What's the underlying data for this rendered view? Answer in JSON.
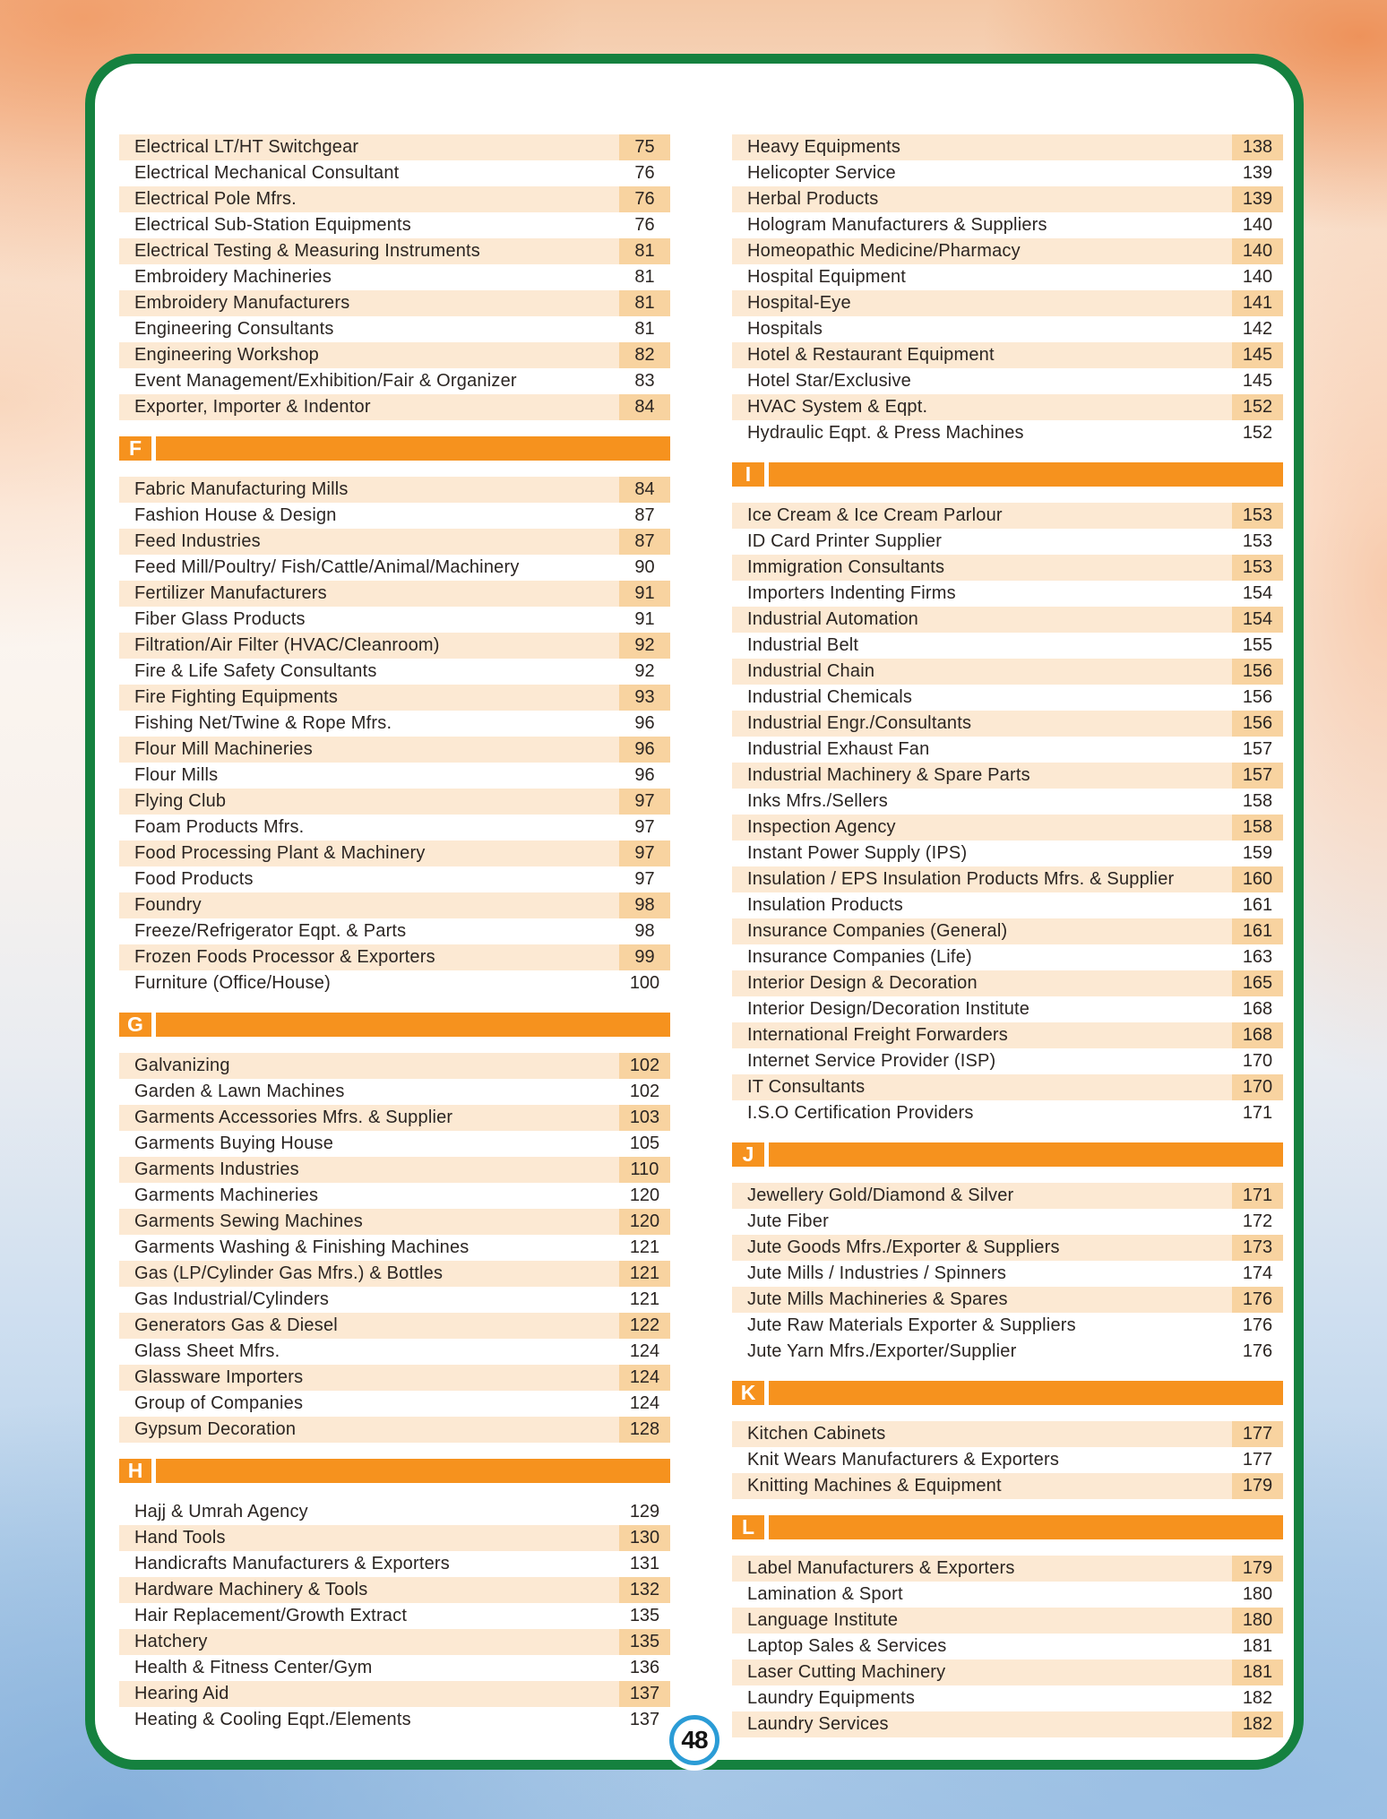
{
  "page": {
    "page_number": "48"
  },
  "colors": {
    "section_header_orange": "#F6921E",
    "row_highlight": "#FCE9D3",
    "page_number_cell": "#F8D3A0",
    "frame_green": "#15813F",
    "badge_ring_blue": "#2B9CD6",
    "text": "#2B2522"
  },
  "columns": [
    {
      "sections": [
        {
          "letter": null,
          "rows": [
            {
              "label": "Electrical LT/HT Switchgear",
              "page": "75",
              "hl": true
            },
            {
              "label": "Electrical Mechanical Consultant",
              "page": "76",
              "hl": false
            },
            {
              "label": "Electrical Pole Mfrs.",
              "page": "76",
              "hl": true
            },
            {
              "label": "Electrical Sub-Station Equipments",
              "page": "76",
              "hl": false
            },
            {
              "label": "Electrical Testing & Measuring Instruments",
              "page": "81",
              "hl": true
            },
            {
              "label": "Embroidery Machineries",
              "page": "81",
              "hl": false
            },
            {
              "label": "Embroidery Manufacturers",
              "page": "81",
              "hl": true
            },
            {
              "label": "Engineering Consultants",
              "page": "81",
              "hl": false
            },
            {
              "label": "Engineering Workshop",
              "page": "82",
              "hl": true
            },
            {
              "label": "Event Management/Exhibition/Fair & Organizer",
              "page": "83",
              "hl": false
            },
            {
              "label": "Exporter, Importer & Indentor",
              "page": "84",
              "hl": true
            }
          ]
        },
        {
          "letter": "F",
          "rows": [
            {
              "label": "Fabric Manufacturing Mills",
              "page": "84",
              "hl": true
            },
            {
              "label": "Fashion House & Design",
              "page": "87",
              "hl": false
            },
            {
              "label": "Feed Industries",
              "page": "87",
              "hl": true
            },
            {
              "label": "Feed Mill/Poultry/ Fish/Cattle/Animal/Machinery",
              "page": "90",
              "hl": false
            },
            {
              "label": "Fertilizer Manufacturers",
              "page": "91",
              "hl": true
            },
            {
              "label": "Fiber Glass Products",
              "page": "91",
              "hl": false
            },
            {
              "label": "Filtration/Air Filter (HVAC/Cleanroom)",
              "page": "92",
              "hl": true
            },
            {
              "label": "Fire & Life Safety Consultants",
              "page": "92",
              "hl": false
            },
            {
              "label": "Fire Fighting Equipments",
              "page": "93",
              "hl": true
            },
            {
              "label": "Fishing Net/Twine & Rope Mfrs.",
              "page": "96",
              "hl": false
            },
            {
              "label": "Flour Mill Machineries",
              "page": "96",
              "hl": true
            },
            {
              "label": "Flour Mills",
              "page": "96",
              "hl": false
            },
            {
              "label": "Flying Club",
              "page": "97",
              "hl": true
            },
            {
              "label": "Foam Products Mfrs.",
              "page": "97",
              "hl": false
            },
            {
              "label": "Food Processing Plant & Machinery",
              "page": "97",
              "hl": true
            },
            {
              "label": "Food Products",
              "page": "97",
              "hl": false
            },
            {
              "label": "Foundry",
              "page": "98",
              "hl": true
            },
            {
              "label": "Freeze/Refrigerator Eqpt. & Parts",
              "page": "98",
              "hl": false
            },
            {
              "label": "Frozen Foods Processor & Exporters",
              "page": "99",
              "hl": true
            },
            {
              "label": "Furniture (Office/House)",
              "page": "100",
              "hl": false
            }
          ]
        },
        {
          "letter": "G",
          "rows": [
            {
              "label": "Galvanizing",
              "page": "102",
              "hl": true
            },
            {
              "label": "Garden & Lawn Machines",
              "page": "102",
              "hl": false
            },
            {
              "label": "Garments Accessories Mfrs. & Supplier",
              "page": "103",
              "hl": true
            },
            {
              "label": "Garments Buying House",
              "page": "105",
              "hl": false
            },
            {
              "label": "Garments Industries",
              "page": "110",
              "hl": true
            },
            {
              "label": "Garments Machineries",
              "page": "120",
              "hl": false
            },
            {
              "label": "Garments Sewing Machines",
              "page": "120",
              "hl": true
            },
            {
              "label": "Garments Washing & Finishing Machines",
              "page": "121",
              "hl": false
            },
            {
              "label": "Gas (LP/Cylinder Gas Mfrs.) & Bottles",
              "page": "121",
              "hl": true
            },
            {
              "label": "Gas Industrial/Cylinders",
              "page": "121",
              "hl": false
            },
            {
              "label": "Generators Gas & Diesel",
              "page": "122",
              "hl": true
            },
            {
              "label": "Glass Sheet Mfrs.",
              "page": "124",
              "hl": false
            },
            {
              "label": "Glassware Importers",
              "page": "124",
              "hl": true
            },
            {
              "label": "Group of Companies",
              "page": "124",
              "hl": false
            },
            {
              "label": "Gypsum Decoration",
              "page": "128",
              "hl": true
            }
          ]
        },
        {
          "letter": "H",
          "rows": [
            {
              "label": "Hajj & Umrah Agency",
              "page": "129",
              "hl": false
            },
            {
              "label": "Hand Tools",
              "page": "130",
              "hl": true
            },
            {
              "label": "Handicrafts Manufacturers & Exporters",
              "page": "131",
              "hl": false
            },
            {
              "label": "Hardware Machinery & Tools",
              "page": "132",
              "hl": true
            },
            {
              "label": "Hair Replacement/Growth Extract",
              "page": "135",
              "hl": false
            },
            {
              "label": "Hatchery",
              "page": "135",
              "hl": true
            },
            {
              "label": "Health & Fitness Center/Gym",
              "page": "136",
              "hl": false
            },
            {
              "label": "Hearing Aid",
              "page": "137",
              "hl": true
            },
            {
              "label": "Heating & Cooling Eqpt./Elements",
              "page": "137",
              "hl": false
            }
          ]
        }
      ]
    },
    {
      "sections": [
        {
          "letter": null,
          "rows": [
            {
              "label": "Heavy Equipments",
              "page": "138",
              "hl": true
            },
            {
              "label": "Helicopter Service",
              "page": "139",
              "hl": false
            },
            {
              "label": "Herbal Products",
              "page": "139",
              "hl": true
            },
            {
              "label": "Hologram Manufacturers & Suppliers",
              "page": "140",
              "hl": false
            },
            {
              "label": "Homeopathic Medicine/Pharmacy",
              "page": "140",
              "hl": true
            },
            {
              "label": "Hospital Equipment",
              "page": "140",
              "hl": false
            },
            {
              "label": "Hospital-Eye",
              "page": "141",
              "hl": true
            },
            {
              "label": "Hospitals",
              "page": "142",
              "hl": false
            },
            {
              "label": "Hotel & Restaurant Equipment",
              "page": "145",
              "hl": true
            },
            {
              "label": "Hotel Star/Exclusive",
              "page": "145",
              "hl": false
            },
            {
              "label": "HVAC System & Eqpt.",
              "page": "152",
              "hl": true
            },
            {
              "label": "Hydraulic Eqpt. & Press Machines",
              "page": "152",
              "hl": false
            }
          ]
        },
        {
          "letter": "I",
          "rows": [
            {
              "label": "Ice Cream & Ice Cream Parlour",
              "page": "153",
              "hl": true
            },
            {
              "label": "ID Card Printer Supplier",
              "page": "153",
              "hl": false
            },
            {
              "label": "Immigration Consultants",
              "page": "153",
              "hl": true
            },
            {
              "label": "Importers Indenting Firms",
              "page": "154",
              "hl": false
            },
            {
              "label": "Industrial Automation",
              "page": "154",
              "hl": true
            },
            {
              "label": "Industrial Belt",
              "page": "155",
              "hl": false
            },
            {
              "label": "Industrial Chain",
              "page": "156",
              "hl": true
            },
            {
              "label": "Industrial Chemicals",
              "page": "156",
              "hl": false
            },
            {
              "label": "Industrial Engr./Consultants",
              "page": "156",
              "hl": true
            },
            {
              "label": "Industrial Exhaust Fan",
              "page": "157",
              "hl": false
            },
            {
              "label": "Industrial Machinery & Spare Parts",
              "page": "157",
              "hl": true
            },
            {
              "label": "Inks Mfrs./Sellers",
              "page": "158",
              "hl": false
            },
            {
              "label": "Inspection Agency",
              "page": "158",
              "hl": true
            },
            {
              "label": "Instant Power Supply (IPS)",
              "page": "159",
              "hl": false
            },
            {
              "label": "Insulation / EPS Insulation Products Mfrs. & Supplier",
              "page": "160",
              "hl": true
            },
            {
              "label": "Insulation Products",
              "page": "161",
              "hl": false
            },
            {
              "label": "Insurance Companies (General)",
              "page": "161",
              "hl": true
            },
            {
              "label": "Insurance Companies (Life)",
              "page": "163",
              "hl": false
            },
            {
              "label": "Interior Design & Decoration",
              "page": "165",
              "hl": true
            },
            {
              "label": "Interior Design/Decoration Institute",
              "page": "168",
              "hl": false
            },
            {
              "label": "International Freight Forwarders",
              "page": "168",
              "hl": true
            },
            {
              "label": "Internet Service Provider (ISP)",
              "page": "170",
              "hl": false
            },
            {
              "label": "IT Consultants",
              "page": "170",
              "hl": true
            },
            {
              "label": "I.S.O Certification Providers",
              "page": "171",
              "hl": false
            }
          ]
        },
        {
          "letter": "J",
          "rows": [
            {
              "label": "Jewellery Gold/Diamond & Silver",
              "page": "171",
              "hl": true
            },
            {
              "label": "Jute Fiber",
              "page": "172",
              "hl": false
            },
            {
              "label": "Jute Goods Mfrs./Exporter & Suppliers",
              "page": "173",
              "hl": true
            },
            {
              "label": "Jute Mills / Industries / Spinners",
              "page": "174",
              "hl": false
            },
            {
              "label": "Jute Mills Machineries & Spares",
              "page": "176",
              "hl": true
            },
            {
              "label": "Jute Raw Materials Exporter & Suppliers",
              "page": "176",
              "hl": false
            },
            {
              "label": "Jute Yarn Mfrs./Exporter/Supplier",
              "page": "176",
              "hl": false
            }
          ]
        },
        {
          "letter": "K",
          "rows": [
            {
              "label": "Kitchen Cabinets",
              "page": "177",
              "hl": true
            },
            {
              "label": "Knit Wears Manufacturers & Exporters",
              "page": "177",
              "hl": false
            },
            {
              "label": "Knitting Machines & Equipment",
              "page": "179",
              "hl": true
            }
          ]
        },
        {
          "letter": "L",
          "rows": [
            {
              "label": "Label Manufacturers & Exporters",
              "page": "179",
              "hl": true
            },
            {
              "label": "Lamination & Sport",
              "page": "180",
              "hl": false
            },
            {
              "label": "Language Institute",
              "page": "180",
              "hl": true
            },
            {
              "label": "Laptop Sales & Services",
              "page": "181",
              "hl": false
            },
            {
              "label": "Laser Cutting Machinery",
              "page": "181",
              "hl": true
            },
            {
              "label": "Laundry Equipments",
              "page": "182",
              "hl": false
            },
            {
              "label": "Laundry Services",
              "page": "182",
              "hl": true
            }
          ]
        }
      ]
    }
  ]
}
